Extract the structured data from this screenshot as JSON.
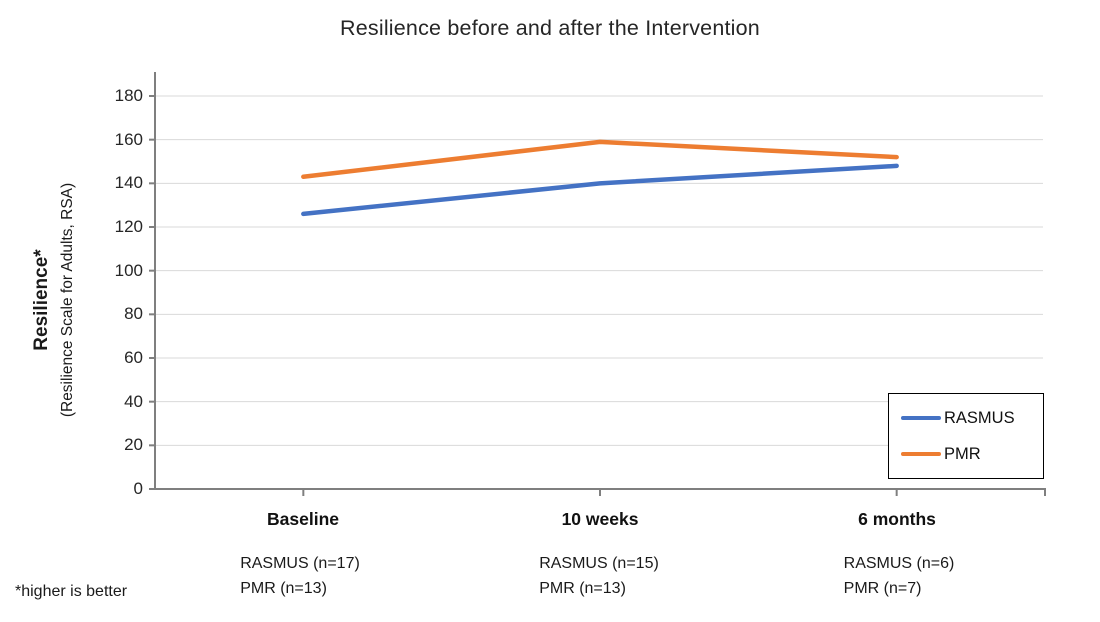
{
  "chart_data": {
    "type": "line",
    "title": "Resilience before and after the Intervention",
    "ylabel_main": "Resilience*",
    "ylabel_sub": "(Resilience Scale for Adults, RSA)",
    "footnote": "*higher is better",
    "categories": [
      "Baseline",
      "10 weeks",
      "6 months"
    ],
    "yticks": [
      0,
      20,
      40,
      60,
      80,
      100,
      120,
      140,
      160,
      180
    ],
    "ylim": [
      0,
      180
    ],
    "grid": true,
    "legend_position": "right-bottom",
    "series": [
      {
        "name": "RASMUS",
        "color": "#4472C4",
        "values": [
          126,
          140,
          148
        ]
      },
      {
        "name": "PMR",
        "color": "#ED7D31",
        "values": [
          143,
          159,
          152
        ]
      }
    ],
    "sample_sizes": [
      [
        "RASMUS (n=17)",
        "PMR (n=13)"
      ],
      [
        "RASMUS (n=15)",
        "PMR (n=13)"
      ],
      [
        "RASMUS (n=6)",
        "PMR (n=7)"
      ]
    ],
    "colors": {
      "gridline": "#d9d9d9",
      "axis": "#7f7f7f",
      "text": "#262626"
    }
  }
}
